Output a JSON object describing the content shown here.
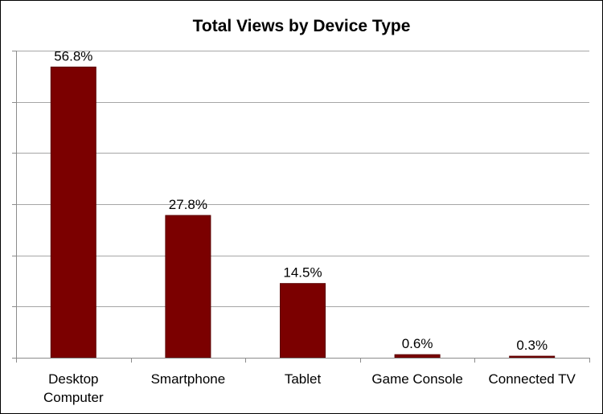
{
  "chart_data": {
    "type": "bar",
    "title": "Total Views by Device Type",
    "xlabel": "",
    "ylabel": "",
    "categories": [
      "Desktop Computer",
      "Smartphone",
      "Tablet",
      "Game Console",
      "Connected TV"
    ],
    "category_lines": [
      [
        "Desktop",
        "Computer"
      ],
      [
        "Smartphone"
      ],
      [
        "Tablet"
      ],
      [
        "Game Console"
      ],
      [
        "Connected TV"
      ]
    ],
    "values": [
      56.8,
      27.8,
      14.5,
      0.6,
      0.3
    ],
    "value_labels": [
      "56.8%",
      "27.8%",
      "14.5%",
      "0.6%",
      "0.3%"
    ],
    "unit": "%",
    "ylim": [
      0,
      60
    ],
    "y_gridline_step": 10,
    "y_tick_labels_visible": false,
    "grid": true,
    "legend": "none",
    "bar_color": "#7b0000",
    "bar_edge_color": "#5a0000",
    "gridline_color": "#a6a6a6",
    "axis_color": "#8c8c8c"
  }
}
